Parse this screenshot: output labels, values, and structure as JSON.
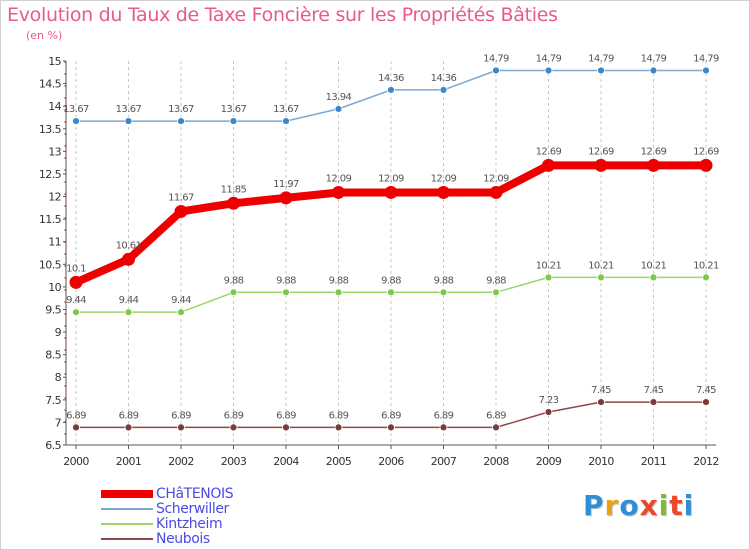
{
  "title": "Evolution du Taux de Taxe Foncière sur les Propriétés Bâties",
  "unit_label": "(en %)",
  "logo_text": "Proxiti",
  "chart_data": {
    "type": "line",
    "title": "Evolution du Taux de Taxe Foncière sur les Propriétés Bâties",
    "ylabel": "(en %)",
    "xlabel": "",
    "ylim": [
      6.5,
      15
    ],
    "yticks": [
      6.5,
      7,
      7.5,
      8,
      8.5,
      9,
      9.5,
      10,
      10.5,
      11,
      11.5,
      12,
      12.5,
      13,
      13.5,
      14,
      14.5,
      15
    ],
    "x": [
      "2000",
      "2001",
      "2002",
      "2003",
      "2004",
      "2005",
      "2006",
      "2007",
      "2008",
      "2009",
      "2010",
      "2011",
      "2012"
    ],
    "grid": "dashed vertical lines",
    "legend_position": "bottom-left",
    "series": [
      {
        "name": "CHâTENOIS",
        "color": "#ee0000",
        "values": [
          10.1,
          10.61,
          11.67,
          11.85,
          11.97,
          12.09,
          12.09,
          12.09,
          12.09,
          12.69,
          12.69,
          12.69,
          12.69
        ],
        "labels": [
          "10.1",
          "10.61",
          "11.67",
          "11.85",
          "11.97",
          "12.09",
          "12.09",
          "12.09",
          "12.09",
          "12.69",
          "12.69",
          "12.69",
          "12.69"
        ]
      },
      {
        "name": "Scherwiller",
        "color": "#7ea8cf",
        "marker_color": "#3b87c9",
        "values": [
          13.67,
          13.67,
          13.67,
          13.67,
          13.67,
          13.94,
          14.36,
          14.36,
          14.79,
          14.79,
          14.79,
          14.79,
          14.79
        ],
        "labels": [
          "13.67",
          "13.67",
          "13.67",
          "13.67",
          "13.67",
          "13.94",
          "14.36",
          "14.36",
          "14.79",
          "14.79",
          "14.79",
          "14.79",
          "14.79"
        ]
      },
      {
        "name": "Kintzheim",
        "color": "#9bd46a",
        "marker_color": "#7dc947",
        "values": [
          9.44,
          9.44,
          9.44,
          9.88,
          9.88,
          9.88,
          9.88,
          9.88,
          9.88,
          10.21,
          10.21,
          10.21,
          10.21
        ],
        "labels": [
          "9.44",
          "9.44",
          "9.44",
          "9.88",
          "9.88",
          "9.88",
          "9.88",
          "9.88",
          "9.88",
          "10.21",
          "10.21",
          "10.21",
          "10.21"
        ]
      },
      {
        "name": "Neubois",
        "color": "#8c4a4a",
        "marker_color": "#7a3a3a",
        "values": [
          6.89,
          6.89,
          6.89,
          6.89,
          6.89,
          6.89,
          6.89,
          6.89,
          6.89,
          7.23,
          7.45,
          7.45,
          7.45
        ],
        "labels": [
          "6.89",
          "6.89",
          "6.89",
          "6.89",
          "6.89",
          "6.89",
          "6.89",
          "6.89",
          "6.89",
          "7.23",
          "7.45",
          "7.45",
          "7.45"
        ]
      }
    ]
  }
}
